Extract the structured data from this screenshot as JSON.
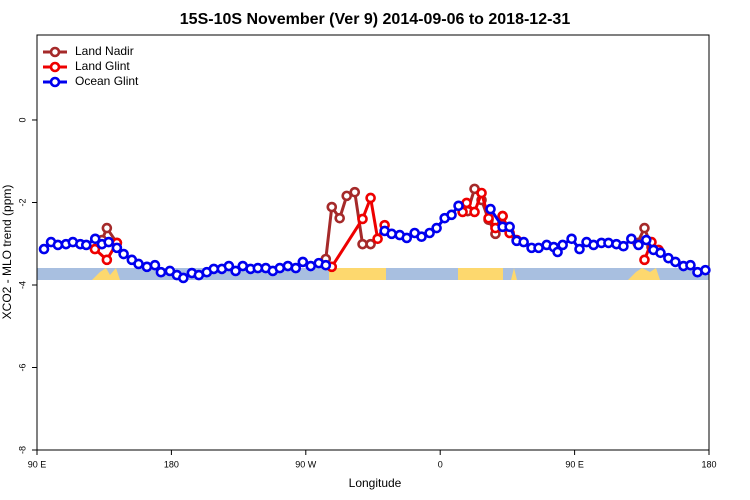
{
  "chart_data": {
    "type": "line",
    "title": "15S-10S November (Ver 9)   2014-09-06 to 2018-12-31",
    "x_label": "Longitude",
    "y_label": "XCO2 - MLO trend (ppm)",
    "xlim": [
      90,
      540
    ],
    "ylim": [
      -8,
      2.06
    ],
    "xticks": [
      {
        "value": 90,
        "label": "90 E"
      },
      180,
      {
        "value": 270,
        "label": "90 W"
      },
      {
        "value": 360,
        "label": "0"
      },
      {
        "value": 450,
        "label": "90 E"
      },
      {
        "value": 540,
        "label": "180"
      }
    ],
    "yticks": [
      0,
      -2,
      -4,
      -6,
      -8
    ],
    "legend": "topleft",
    "series": [
      {
        "name": "Land Nadir",
        "color": "#a52a2a",
        "x": [
          133.5,
          136.8,
          143.5,
          null,
          283.4,
          287.4,
          292.7,
          297.4,
          302.8,
          308,
          313.4,
          null,
          378.4,
          383,
          387.7,
          392.4,
          397,
          401.8,
          null,
          492.1,
          496.8,
          501.5
        ],
        "values": [
          -2.91,
          -2.62,
          -2.98,
          null,
          -3.37,
          -2.11,
          -2.38,
          -1.84,
          -1.75,
          -3.01,
          -3.01,
          null,
          -2.21,
          -1.67,
          -1.94,
          -2.42,
          -2.76,
          -2.33,
          null,
          -2.98,
          -2.62,
          -3.08
        ]
      },
      {
        "name": "Land Glint",
        "color": "#ee0000",
        "x": [
          128.8,
          136.8,
          143.5,
          null,
          287.4,
          308,
          313.4,
          318.1,
          322.8,
          null,
          375,
          377.7,
          383,
          387.7,
          392.4,
          397,
          401.8,
          406.5,
          411.2,
          null,
          496.8,
          501.5,
          506.2
        ],
        "values": [
          -3.13,
          -3.39,
          -2.98,
          null,
          -3.56,
          -2.4,
          -1.89,
          -2.88,
          -2.55,
          null,
          -2.23,
          -2.01,
          -2.23,
          -1.77,
          -2.38,
          -2.62,
          -2.33,
          -2.74,
          -2.91,
          null,
          -3.39,
          -2.96,
          -3.15
        ]
      },
      {
        "name": "Ocean Glint",
        "color": "#0000ee",
        "x": [
          94.7,
          99.4,
          104,
          109.4,
          114,
          119,
          123,
          129,
          133.5,
          138,
          143.5,
          148,
          153.5,
          158,
          163.6,
          169,
          173,
          179,
          183.7,
          188,
          193.7,
          198.4,
          203.7,
          208.4,
          213.8,
          218.5,
          223,
          227.8,
          233,
          237.9,
          243.2,
          247.9,
          252.6,
          258,
          263.3,
          268,
          273.3,
          278.7,
          283.4,
          null,
          322.8,
          327.5,
          332.9,
          337.6,
          342.9,
          347.5,
          352.9,
          357.6,
          363,
          367.6,
          372.3,
          null,
          393.7,
          401.8,
          406.5,
          411.2,
          415.9,
          421.2,
          425.9,
          431.3,
          436,
          438.6,
          442,
          448,
          453.3,
          458,
          462.7,
          468,
          472.7,
          478,
          482.7,
          488,
          492.8,
          498,
          502.8,
          507.5,
          512.8,
          517.5,
          522.9,
          527.6,
          532.3,
          537.6
        ],
        "values": [
          -3.13,
          -2.96,
          -3.03,
          -3.01,
          -2.96,
          -3.01,
          -3.03,
          -2.88,
          -3.01,
          -2.96,
          -3.1,
          -3.25,
          -3.39,
          -3.49,
          -3.56,
          -3.52,
          -3.69,
          -3.66,
          -3.76,
          -3.83,
          -3.71,
          -3.76,
          -3.69,
          -3.61,
          -3.61,
          -3.54,
          -3.66,
          -3.54,
          -3.61,
          -3.59,
          -3.59,
          -3.66,
          -3.59,
          -3.54,
          -3.59,
          -3.44,
          -3.54,
          -3.47,
          -3.52,
          null,
          -2.69,
          -2.76,
          -2.79,
          -2.86,
          -2.74,
          -2.83,
          -2.74,
          -2.62,
          -2.38,
          -2.3,
          -2.08,
          null,
          -2.16,
          -2.59,
          -2.59,
          -2.93,
          -2.96,
          -3.1,
          -3.1,
          -3.03,
          -3.08,
          -3.2,
          -3.03,
          -2.88,
          -3.13,
          -2.96,
          -3.03,
          -2.98,
          -2.98,
          -3.01,
          -3.06,
          -2.88,
          -3.03,
          -2.91,
          -3.15,
          -3.22,
          -3.35,
          -3.44,
          -3.54,
          -3.52,
          -3.69,
          -3.64
        ]
      }
    ]
  }
}
